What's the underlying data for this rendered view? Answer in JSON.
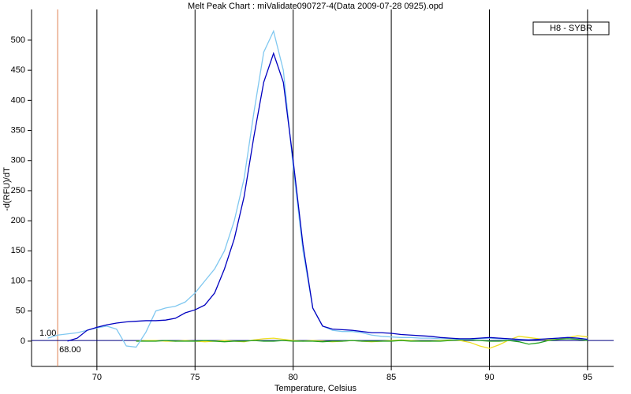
{
  "chart_data": {
    "type": "line",
    "title": "Melt Peak Chart : miValidate090727-4(Data 2009-07-28 0925).opd",
    "xlabel": "Temperature, Celsius",
    "ylabel": "-d(RFU)/dT",
    "legend_label": "H8 - SYBR",
    "threshold": {
      "value": 1,
      "label": "1.00",
      "color": "#000080"
    },
    "cutoff": {
      "value": 68,
      "label": "68.00",
      "color": "#e08050"
    },
    "xlim": [
      66.67,
      96.33
    ],
    "ylim": [
      -42,
      551
    ],
    "xticks": [
      70,
      75,
      80,
      85,
      90,
      95
    ],
    "yticks": [
      0,
      50,
      100,
      150,
      200,
      250,
      300,
      350,
      400,
      450,
      500
    ],
    "grid": true,
    "x": [
      67.5,
      68,
      68.5,
      69,
      69.5,
      70,
      70.5,
      71,
      71.5,
      72,
      72.5,
      73,
      73.5,
      74,
      74.5,
      75,
      75.5,
      76,
      76.5,
      77,
      77.5,
      78,
      78.5,
      79,
      79.5,
      80,
      80.5,
      81,
      81.5,
      82,
      82.5,
      83,
      83.5,
      84,
      84.5,
      85,
      85.5,
      86,
      86.5,
      87,
      87.5,
      88,
      88.5,
      89,
      89.5,
      90,
      90.5,
      91,
      91.5,
      92,
      92.5,
      93,
      93.5,
      94,
      94.5,
      95
    ],
    "series": [
      {
        "color": "#f0e020",
        "values": [
          null,
          null,
          null,
          null,
          null,
          null,
          null,
          null,
          null,
          0,
          1,
          1,
          0,
          0,
          1,
          0,
          -1,
          0,
          1,
          0,
          -1,
          2,
          4,
          5,
          3,
          1,
          0,
          1,
          0,
          -1,
          0,
          1,
          0,
          -1,
          0,
          1,
          2,
          1,
          0,
          0,
          1,
          2,
          1,
          -2,
          -8,
          -12,
          -6,
          2,
          8,
          6,
          4,
          2,
          3,
          6,
          9,
          7
        ]
      },
      {
        "color": "#20a020",
        "values": [
          null,
          null,
          null,
          null,
          null,
          null,
          null,
          null,
          null,
          0,
          0,
          0,
          1,
          0,
          0,
          0,
          1,
          0,
          -1,
          0,
          0,
          1,
          0,
          0,
          1,
          0,
          0,
          0,
          -1,
          0,
          0,
          1,
          0,
          0,
          0,
          0,
          1,
          0,
          0,
          0,
          0,
          1,
          2,
          2,
          1,
          0,
          0,
          1,
          -1,
          -5,
          -3,
          1,
          3,
          4,
          3,
          1
        ]
      },
      {
        "color": "#80c8f0",
        "values": [
          5,
          10,
          12,
          14,
          18,
          22,
          25,
          20,
          -8,
          -10,
          15,
          50,
          55,
          58,
          65,
          80,
          100,
          120,
          150,
          200,
          270,
          380,
          480,
          515,
          450,
          290,
          150,
          55,
          25,
          18,
          16,
          16,
          14,
          10,
          8,
          7,
          6,
          6,
          5,
          5,
          4,
          4,
          3,
          3,
          4,
          5,
          4,
          3,
          2,
          2,
          3,
          4,
          5,
          6,
          5,
          3
        ]
      },
      {
        "color": "#0000c0",
        "values": [
          null,
          null,
          0,
          5,
          18,
          23,
          27,
          30,
          32,
          33,
          34,
          34,
          35,
          38,
          47,
          52,
          60,
          80,
          120,
          170,
          240,
          340,
          430,
          478,
          430,
          300,
          160,
          55,
          25,
          20,
          19,
          18,
          16,
          14,
          14,
          13,
          11,
          10,
          9,
          8,
          6,
          5,
          4,
          4,
          5,
          6,
          5,
          4,
          3,
          2,
          3,
          4,
          5,
          6,
          5,
          3
        ]
      }
    ]
  }
}
